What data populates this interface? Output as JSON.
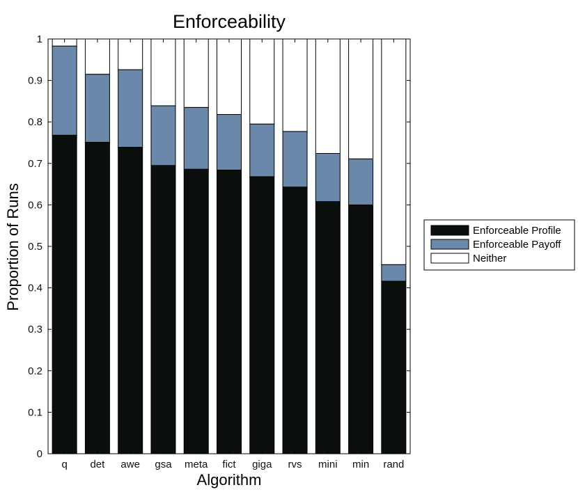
{
  "chart_data": {
    "type": "bar",
    "stacked": true,
    "title": "Enforceability",
    "xlabel": "Algorithm",
    "ylabel": "Proportion of Runs",
    "ylim": [
      0,
      1
    ],
    "yticks": [
      0,
      0.1,
      0.2,
      0.3,
      0.4,
      0.5,
      0.6,
      0.7,
      0.8,
      0.9,
      1
    ],
    "ytick_labels": [
      "0",
      "0.1",
      "0.2",
      "0.3",
      "0.4",
      "0.5",
      "0.6",
      "0.7",
      "0.8",
      "0.9",
      "1"
    ],
    "categories": [
      "q",
      "det",
      "awe",
      "gsa",
      "meta",
      "fict",
      "giga",
      "rvs",
      "mini",
      "min",
      "rand"
    ],
    "series": [
      {
        "name": "Enforceable Profile",
        "color": "#0a0f0e",
        "values": [
          0.768,
          0.751,
          0.739,
          0.695,
          0.686,
          0.684,
          0.668,
          0.643,
          0.608,
          0.6,
          0.416
        ]
      },
      {
        "name": "Enforceable Payoff",
        "color": "#6a88aa",
        "values": [
          0.215,
          0.164,
          0.187,
          0.144,
          0.149,
          0.134,
          0.127,
          0.134,
          0.116,
          0.111,
          0.04
        ]
      },
      {
        "name": "Neither",
        "color": "#ffffff",
        "values": [
          0.017,
          0.085,
          0.074,
          0.161,
          0.165,
          0.182,
          0.205,
          0.223,
          0.276,
          0.289,
          0.544
        ]
      }
    ],
    "grid": false,
    "legend_position": "right"
  }
}
